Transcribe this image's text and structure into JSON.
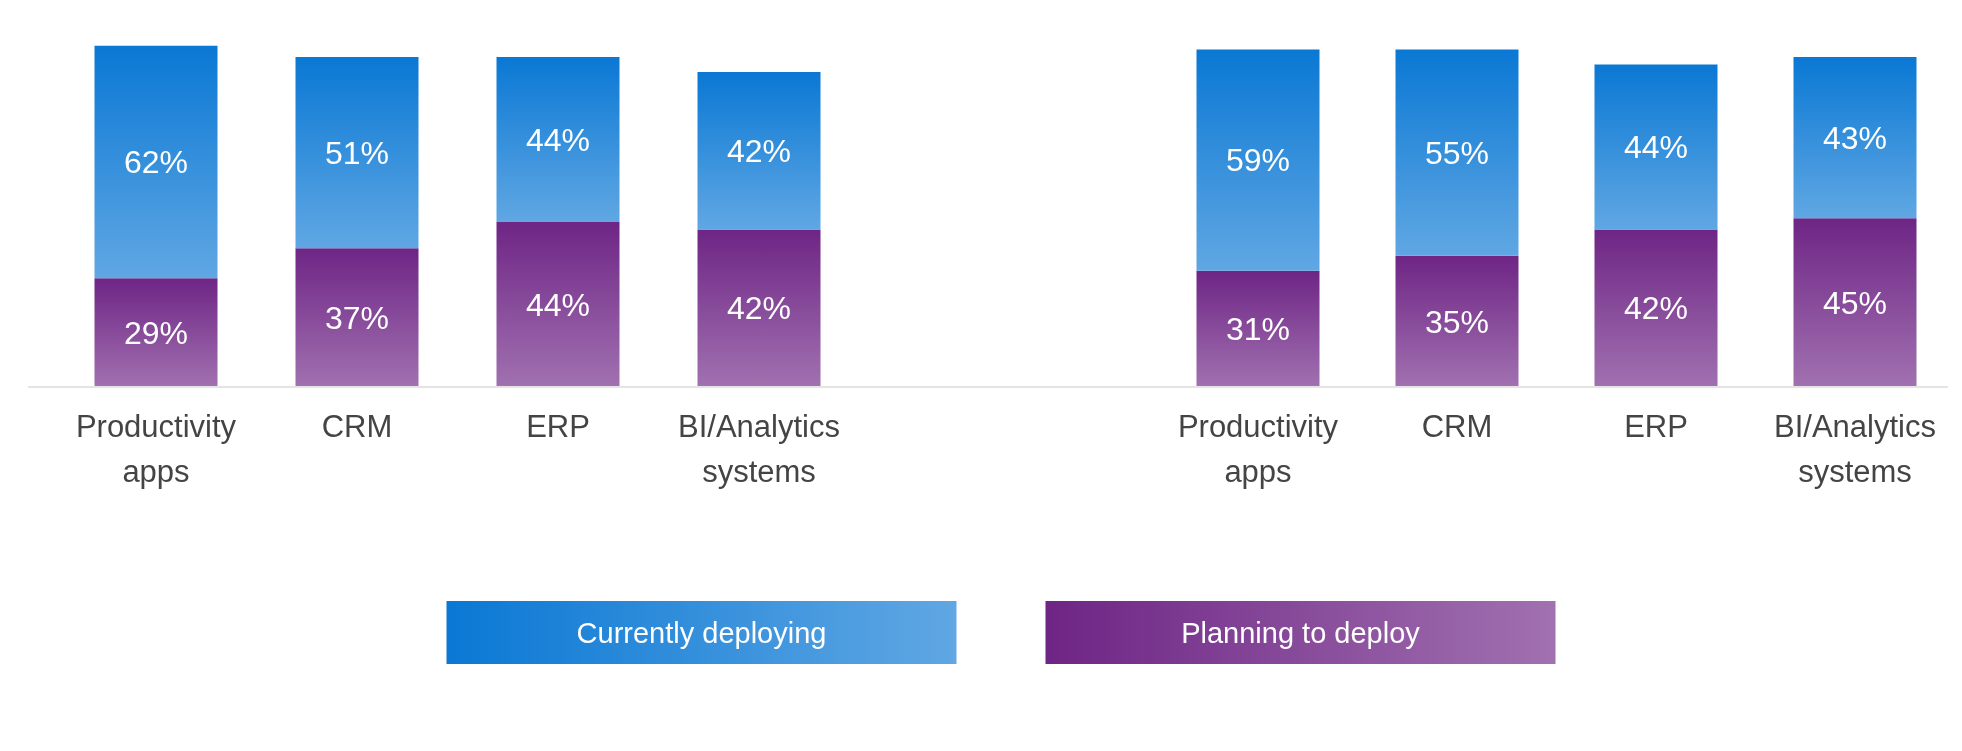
{
  "chart_data": [
    {
      "type": "bar",
      "stacked": true,
      "legend": "bottom",
      "categories": [
        "Productivity apps",
        "CRM",
        "ERP",
        "BI/Analytics systems"
      ],
      "series": [
        {
          "name": "Planning to deploy",
          "color": "#6e2585",
          "values": [
            29,
            37,
            44,
            42
          ],
          "value_labels": [
            "29%",
            "37%",
            "44%",
            "42%"
          ]
        },
        {
          "name": "Currently deploying",
          "color": "#0a78d4",
          "values": [
            62,
            51,
            44,
            42
          ],
          "value_labels": [
            "62%",
            "51%",
            "44%",
            "42%"
          ]
        }
      ]
    },
    {
      "type": "bar",
      "stacked": true,
      "categories": [
        "Productivity apps",
        "CRM",
        "ERP",
        "BI/Analytics systems"
      ],
      "series": [
        {
          "color": "#6e2585",
          "values": [
            31,
            35,
            42,
            45
          ],
          "value_labels": [
            "31%",
            "35%",
            "42%",
            "45%"
          ]
        },
        {
          "color": "#0a78d4",
          "values": [
            59,
            55,
            44,
            43
          ],
          "value_labels": [
            "59%",
            "55%",
            "44%",
            "43%"
          ]
        }
      ]
    }
  ]
}
